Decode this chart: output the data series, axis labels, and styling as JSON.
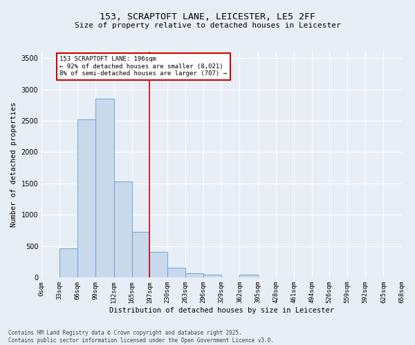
{
  "title_line1": "153, SCRAPTOFT LANE, LEICESTER, LE5 2FF",
  "title_line2": "Size of property relative to detached houses in Leicester",
  "xlabel": "Distribution of detached houses by size in Leicester",
  "ylabel": "Number of detached properties",
  "bar_color": "#c9d9ec",
  "bar_edge_color": "#5b9bd5",
  "background_color": "#e8eef6",
  "grid_color": "#ffffff",
  "annotation_text": "153 SCRAPTOFT LANE: 196sqm\n← 92% of detached houses are smaller (8,021)\n8% of semi-detached houses are larger (707) →",
  "annotation_box_color": "#cc0000",
  "vline_color": "#cc0000",
  "vline_x": 197,
  "footnote": "Contains HM Land Registry data © Crown copyright and database right 2025.\nContains public sector information licensed under the Open Government Licence v3.0.",
  "bin_edges": [
    0,
    33,
    66,
    99,
    132,
    165,
    197,
    230,
    263,
    296,
    329,
    362,
    395,
    428,
    461,
    494,
    526,
    559,
    592,
    625,
    658
  ],
  "bar_heights": [
    0,
    470,
    2520,
    2850,
    1530,
    730,
    410,
    155,
    70,
    50,
    0,
    50,
    0,
    0,
    0,
    0,
    0,
    0,
    0,
    0
  ],
  "ylim": [
    0,
    3600
  ],
  "yticks": [
    0,
    500,
    1000,
    1500,
    2000,
    2500,
    3000,
    3500
  ],
  "fig_width": 6.0,
  "fig_height": 5.0,
  "dpi": 100
}
